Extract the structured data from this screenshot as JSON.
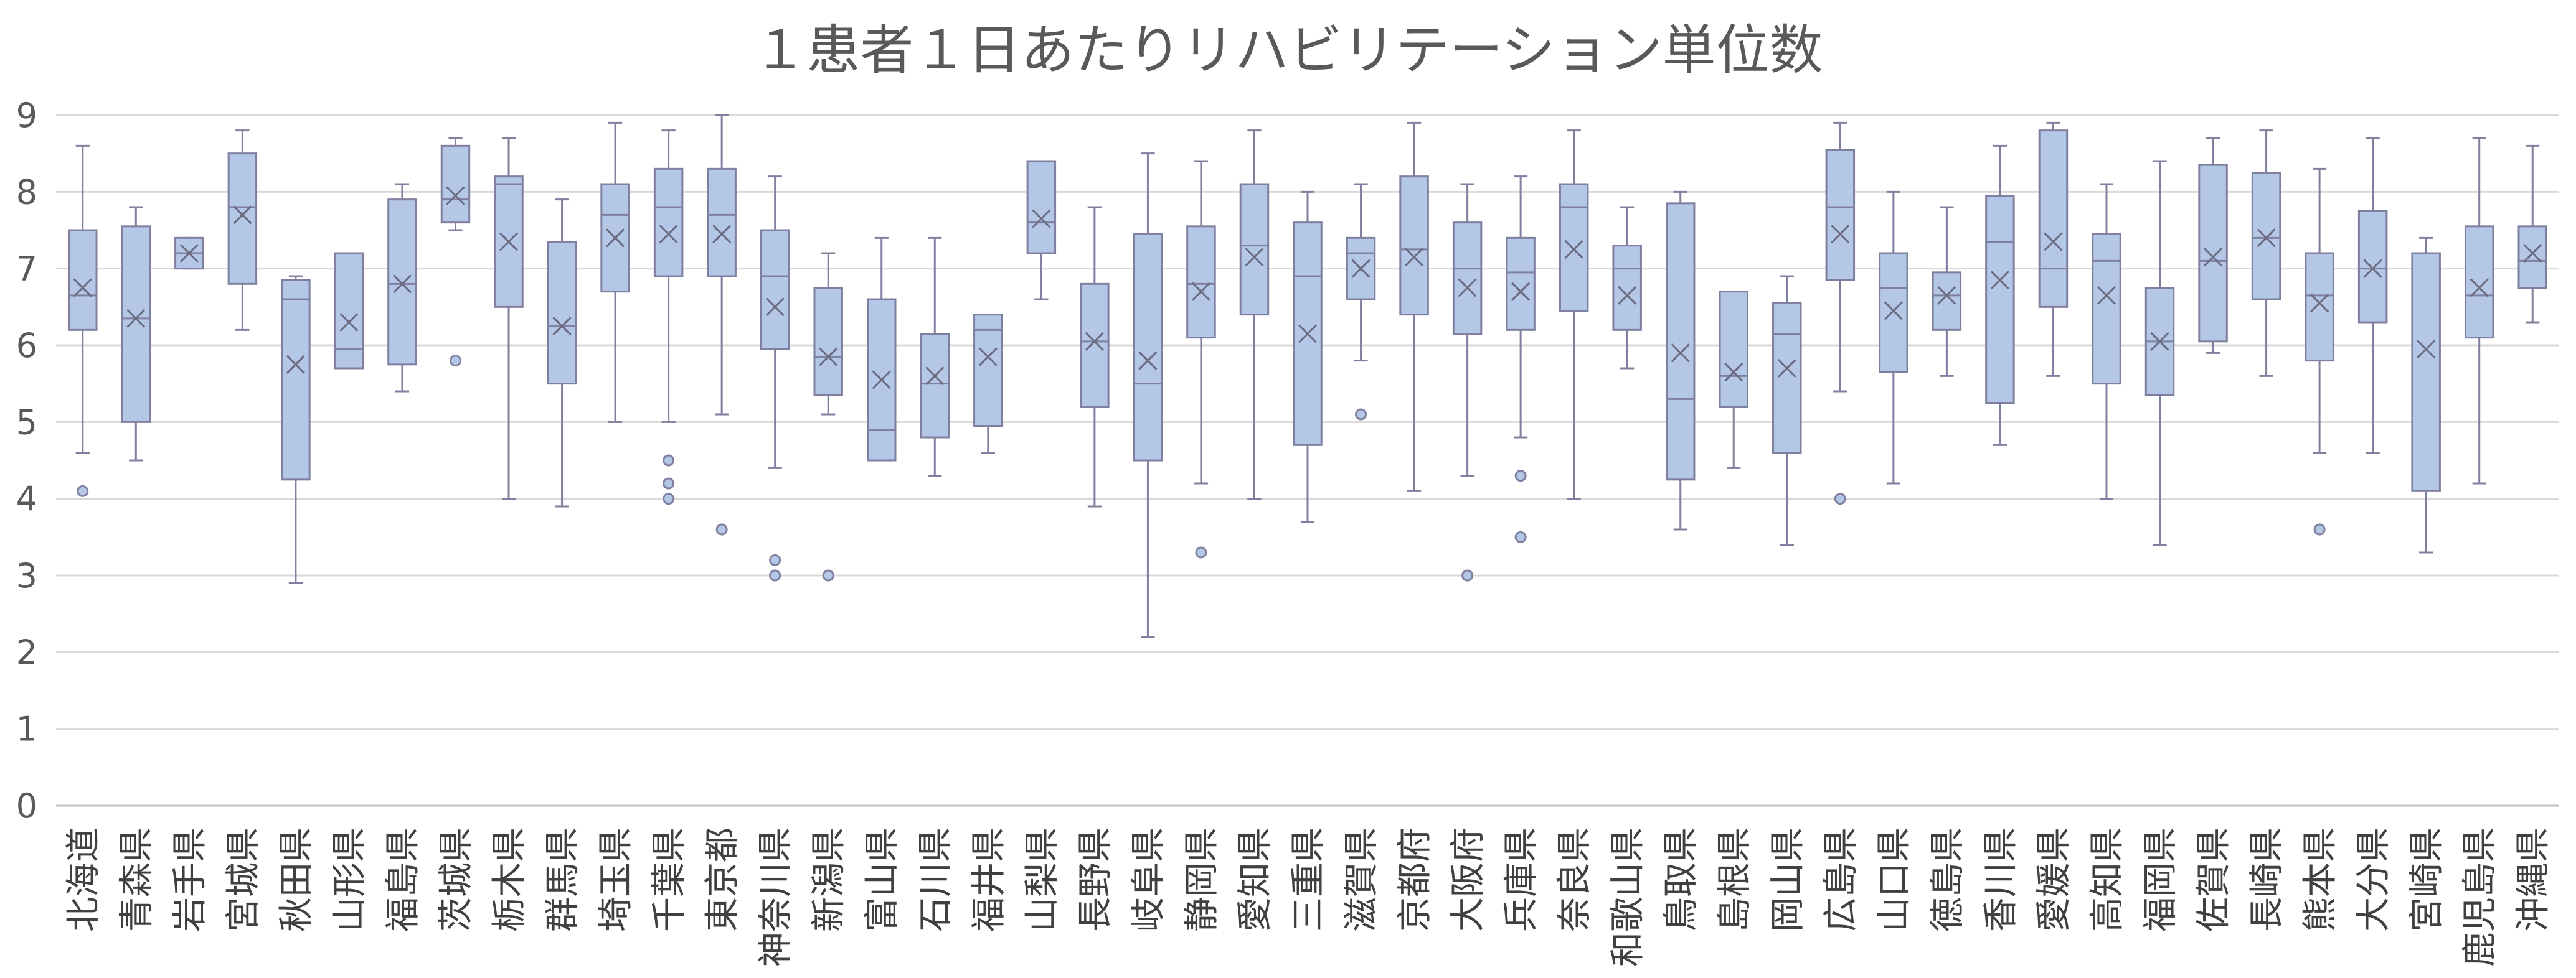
{
  "chart_data": {
    "type": "boxplot",
    "title": "１患者１日あたりリハビリテーション単位数",
    "xlabel": "",
    "ylabel": "",
    "ylim": [
      0,
      9
    ],
    "yticks": [
      "0",
      "1",
      "2",
      "3",
      "4",
      "5",
      "6",
      "7",
      "8",
      "9"
    ],
    "grid": true,
    "legend": "none",
    "colors": {
      "box_fill": "#b4c7e7",
      "box_stroke": "#7f7f9f",
      "grid": "#d9d9d9",
      "axis": "#bfbfbf"
    },
    "categories": [
      "北海道",
      "青森県",
      "岩手県",
      "宮城県",
      "秋田県",
      "山形県",
      "福島県",
      "茨城県",
      "栃木県",
      "群馬県",
      "埼玉県",
      "千葉県",
      "東京都",
      "神奈川県",
      "新潟県",
      "富山県",
      "石川県",
      "福井県",
      "山梨県",
      "長野県",
      "岐阜県",
      "静岡県",
      "愛知県",
      "三重県",
      "滋賀県",
      "京都府",
      "大阪府",
      "兵庫県",
      "奈良県",
      "和歌山県",
      "鳥取県",
      "島根県",
      "岡山県",
      "広島県",
      "山口県",
      "徳島県",
      "香川県",
      "愛媛県",
      "高知県",
      "福岡県",
      "佐賀県",
      "長崎県",
      "熊本県",
      "大分県",
      "宮崎県",
      "鹿児島県",
      "沖縄県"
    ],
    "boxes": [
      {
        "min": 4.6,
        "q1": 6.2,
        "median": 6.65,
        "q3": 7.5,
        "max": 8.6,
        "mean": 6.75,
        "outliers": [
          4.1
        ]
      },
      {
        "min": 4.5,
        "q1": 5.0,
        "median": 6.35,
        "q3": 7.55,
        "max": 7.8,
        "mean": 6.35,
        "outliers": []
      },
      {
        "min": 7.0,
        "q1": 7.0,
        "median": 7.2,
        "q3": 7.4,
        "max": 7.4,
        "mean": 7.2,
        "outliers": []
      },
      {
        "min": 6.2,
        "q1": 6.8,
        "median": 7.8,
        "q3": 8.5,
        "max": 8.8,
        "mean": 7.7,
        "outliers": []
      },
      {
        "min": 2.9,
        "q1": 4.25,
        "median": 6.6,
        "q3": 6.85,
        "max": 6.9,
        "mean": 5.75,
        "outliers": []
      },
      {
        "min": 5.7,
        "q1": 5.7,
        "median": 5.95,
        "q3": 7.2,
        "max": 7.2,
        "mean": 6.3,
        "outliers": []
      },
      {
        "min": 5.4,
        "q1": 5.75,
        "median": 6.8,
        "q3": 7.9,
        "max": 8.1,
        "mean": 6.8,
        "outliers": []
      },
      {
        "min": 7.5,
        "q1": 7.6,
        "median": 7.9,
        "q3": 8.6,
        "max": 8.7,
        "mean": 7.95,
        "outliers": [
          5.8
        ]
      },
      {
        "min": 4.0,
        "q1": 6.5,
        "median": 8.1,
        "q3": 8.2,
        "max": 8.7,
        "mean": 7.35,
        "outliers": []
      },
      {
        "min": 3.9,
        "q1": 5.5,
        "median": 6.25,
        "q3": 7.35,
        "max": 7.9,
        "mean": 6.25,
        "outliers": []
      },
      {
        "min": 5.0,
        "q1": 6.7,
        "median": 7.7,
        "q3": 8.1,
        "max": 8.9,
        "mean": 7.4,
        "outliers": []
      },
      {
        "min": 5.0,
        "q1": 6.9,
        "median": 7.8,
        "q3": 8.3,
        "max": 8.8,
        "mean": 7.45,
        "outliers": [
          4.5,
          4.2,
          4.0
        ]
      },
      {
        "min": 5.1,
        "q1": 6.9,
        "median": 7.7,
        "q3": 8.3,
        "max": 9.0,
        "mean": 7.45,
        "outliers": [
          3.6
        ]
      },
      {
        "min": 4.4,
        "q1": 5.95,
        "median": 6.9,
        "q3": 7.5,
        "max": 8.2,
        "mean": 6.5,
        "outliers": [
          3.2,
          3.0
        ]
      },
      {
        "min": 5.1,
        "q1": 5.35,
        "median": 5.85,
        "q3": 6.75,
        "max": 7.2,
        "mean": 5.85,
        "outliers": [
          3.0
        ]
      },
      {
        "min": 4.5,
        "q1": 4.5,
        "median": 4.9,
        "q3": 6.6,
        "max": 7.4,
        "mean": 5.55,
        "outliers": []
      },
      {
        "min": 4.3,
        "q1": 4.8,
        "median": 5.5,
        "q3": 6.15,
        "max": 7.4,
        "mean": 5.6,
        "outliers": []
      },
      {
        "min": 4.6,
        "q1": 4.95,
        "median": 6.2,
        "q3": 6.4,
        "max": 6.4,
        "mean": 5.85,
        "outliers": []
      },
      {
        "min": 6.6,
        "q1": 7.2,
        "median": 7.6,
        "q3": 8.4,
        "max": 8.4,
        "mean": 7.65,
        "outliers": []
      },
      {
        "min": 3.9,
        "q1": 5.2,
        "median": 6.05,
        "q3": 6.8,
        "max": 7.8,
        "mean": 6.05,
        "outliers": []
      },
      {
        "min": 2.2,
        "q1": 4.5,
        "median": 5.5,
        "q3": 7.45,
        "max": 8.5,
        "mean": 5.8,
        "outliers": []
      },
      {
        "min": 4.2,
        "q1": 6.1,
        "median": 6.8,
        "q3": 7.55,
        "max": 8.4,
        "mean": 6.7,
        "outliers": [
          3.3
        ]
      },
      {
        "min": 4.0,
        "q1": 6.4,
        "median": 7.3,
        "q3": 8.1,
        "max": 8.8,
        "mean": 7.15,
        "outliers": []
      },
      {
        "min": 3.7,
        "q1": 4.7,
        "median": 6.9,
        "q3": 7.6,
        "max": 8.0,
        "mean": 6.15,
        "outliers": []
      },
      {
        "min": 5.8,
        "q1": 6.6,
        "median": 7.2,
        "q3": 7.4,
        "max": 8.1,
        "mean": 7.0,
        "outliers": [
          5.1
        ]
      },
      {
        "min": 4.1,
        "q1": 6.4,
        "median": 7.25,
        "q3": 8.2,
        "max": 8.9,
        "mean": 7.15,
        "outliers": []
      },
      {
        "min": 4.3,
        "q1": 6.15,
        "median": 7.0,
        "q3": 7.6,
        "max": 8.1,
        "mean": 6.75,
        "outliers": [
          3.0
        ]
      },
      {
        "min": 4.8,
        "q1": 6.2,
        "median": 6.95,
        "q3": 7.4,
        "max": 8.2,
        "mean": 6.7,
        "outliers": [
          4.3,
          3.5
        ]
      },
      {
        "min": 4.0,
        "q1": 6.45,
        "median": 7.8,
        "q3": 8.1,
        "max": 8.8,
        "mean": 7.25,
        "outliers": []
      },
      {
        "min": 5.7,
        "q1": 6.2,
        "median": 7.0,
        "q3": 7.3,
        "max": 7.8,
        "mean": 6.65,
        "outliers": []
      },
      {
        "min": 3.6,
        "q1": 4.25,
        "median": 5.3,
        "q3": 7.85,
        "max": 8.0,
        "mean": 5.9,
        "outliers": []
      },
      {
        "min": 4.4,
        "q1": 5.2,
        "median": 5.6,
        "q3": 6.7,
        "max": 6.7,
        "mean": 5.65,
        "outliers": []
      },
      {
        "min": 3.4,
        "q1": 4.6,
        "median": 6.15,
        "q3": 6.55,
        "max": 6.9,
        "mean": 5.7,
        "outliers": []
      },
      {
        "min": 5.4,
        "q1": 6.85,
        "median": 7.8,
        "q3": 8.55,
        "max": 8.9,
        "mean": 7.45,
        "outliers": [
          4.0
        ]
      },
      {
        "min": 4.2,
        "q1": 5.65,
        "median": 6.75,
        "q3": 7.2,
        "max": 8.0,
        "mean": 6.45,
        "outliers": []
      },
      {
        "min": 5.6,
        "q1": 6.2,
        "median": 6.65,
        "q3": 6.95,
        "max": 7.8,
        "mean": 6.65,
        "outliers": []
      },
      {
        "min": 4.7,
        "q1": 5.25,
        "median": 7.35,
        "q3": 7.95,
        "max": 8.6,
        "mean": 6.85,
        "outliers": []
      },
      {
        "min": 5.6,
        "q1": 6.5,
        "median": 7.0,
        "q3": 8.8,
        "max": 8.9,
        "mean": 7.35,
        "outliers": []
      },
      {
        "min": 4.0,
        "q1": 5.5,
        "median": 7.1,
        "q3": 7.45,
        "max": 8.1,
        "mean": 6.65,
        "outliers": []
      },
      {
        "min": 3.4,
        "q1": 5.35,
        "median": 6.05,
        "q3": 6.75,
        "max": 8.4,
        "mean": 6.05,
        "outliers": []
      },
      {
        "min": 5.9,
        "q1": 6.05,
        "median": 7.1,
        "q3": 8.35,
        "max": 8.7,
        "mean": 7.15,
        "outliers": []
      },
      {
        "min": 5.6,
        "q1": 6.6,
        "median": 7.4,
        "q3": 8.25,
        "max": 8.8,
        "mean": 7.4,
        "outliers": []
      },
      {
        "min": 4.6,
        "q1": 5.8,
        "median": 6.65,
        "q3": 7.2,
        "max": 8.3,
        "mean": 6.55,
        "outliers": [
          3.6
        ]
      },
      {
        "min": 4.6,
        "q1": 6.3,
        "median": 7.0,
        "q3": 7.75,
        "max": 8.7,
        "mean": 7.0,
        "outliers": []
      },
      {
        "min": 3.3,
        "q1": 4.1,
        "median": 7.2,
        "q3": 7.2,
        "max": 7.4,
        "mean": 5.95,
        "outliers": []
      },
      {
        "min": 4.2,
        "q1": 6.1,
        "median": 6.65,
        "q3": 7.55,
        "max": 8.7,
        "mean": 6.75,
        "outliers": []
      },
      {
        "min": 6.3,
        "q1": 6.75,
        "median": 7.1,
        "q3": 7.55,
        "max": 8.6,
        "mean": 7.2,
        "outliers": []
      }
    ]
  }
}
